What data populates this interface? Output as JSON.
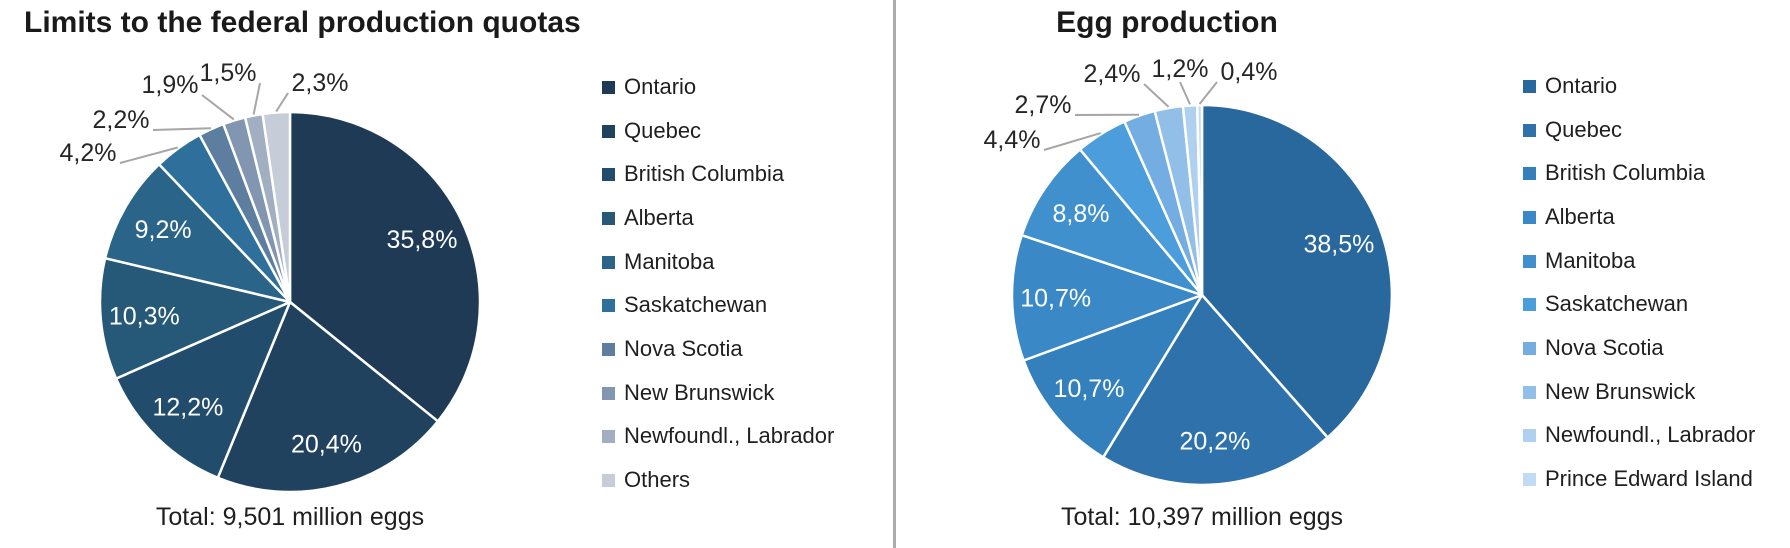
{
  "chart_data": [
    {
      "type": "pie",
      "title": "Limits to the federal production quotas",
      "total_label": "Total: 9,501 million eggs",
      "categories": [
        "Ontario",
        "Quebec",
        "British Columbia",
        "Alberta",
        "Manitoba",
        "Saskatchewan",
        "Nova Scotia",
        "New Brunswick",
        "Newfoundl., Labrador",
        "Others"
      ],
      "values": [
        35.8,
        20.4,
        12.2,
        10.3,
        9.2,
        4.2,
        2.2,
        1.9,
        1.5,
        2.3
      ],
      "value_labels": [
        "35,8%",
        "20,4%",
        "12,2%",
        "10,3%",
        "9,2%",
        "4,2%",
        "2,2%",
        "1,9%",
        "1,5%",
        "2,3%"
      ],
      "colors": [
        "#1E3A54",
        "#20425F",
        "#224C6B",
        "#265878",
        "#2A6489",
        "#2E6F9B",
        "#5D7E9F",
        "#8296B1",
        "#A2AFC3",
        "#C6CDD9"
      ],
      "legend_position": "right"
    },
    {
      "type": "pie",
      "title": "Egg production",
      "total_label": "Total: 10,397 million eggs",
      "categories": [
        "Ontario",
        "Quebec",
        "British Columbia",
        "Alberta",
        "Manitoba",
        "Saskatchewan",
        "Nova Scotia",
        "New Brunswick",
        "Newfoundl., Labrador",
        "Prince Edward Island"
      ],
      "values": [
        38.5,
        20.2,
        10.7,
        10.7,
        8.8,
        4.4,
        2.7,
        2.4,
        1.2,
        0.4
      ],
      "value_labels": [
        "38,5%",
        "20,2%",
        "10,7%",
        "10,7%",
        "8,8%",
        "4,4%",
        "2,7%",
        "2,4%",
        "1,2%",
        "0,4%"
      ],
      "colors": [
        "#29689D",
        "#2E71AB",
        "#3380BC",
        "#3A89C6",
        "#4090CD",
        "#4B9DDB",
        "#73ADE1",
        "#92BFE8",
        "#AFD0EF",
        "#C2DBF3"
      ],
      "legend_position": "right"
    }
  ]
}
